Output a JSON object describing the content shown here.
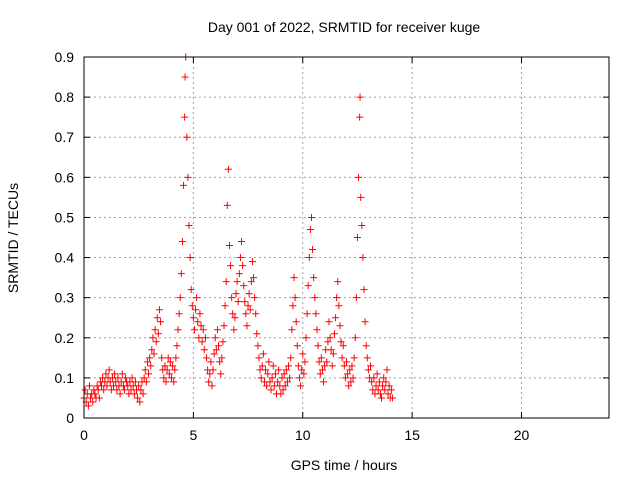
{
  "chart_data": {
    "type": "scatter",
    "title": "Day 001 of 2022, SRMTID for receiver kuge",
    "xlabel": "GPS time / hours",
    "ylabel": "SRMTID / TECUs",
    "xlim": [
      0,
      24
    ],
    "ylim": [
      0,
      0.9
    ],
    "xticks": [
      0,
      5,
      10,
      15,
      20
    ],
    "yticks": [
      0,
      0.1,
      0.2,
      0.3,
      0.4,
      0.5,
      0.6,
      0.7,
      0.8,
      0.9
    ],
    "grid": true,
    "marker": "+",
    "color": "#ff0000",
    "series": [
      {
        "name": "kuge",
        "points": [
          [
            0.0,
            0.05
          ],
          [
            0.05,
            0.07
          ],
          [
            0.1,
            0.04
          ],
          [
            0.15,
            0.06
          ],
          [
            0.2,
            0.03
          ],
          [
            0.25,
            0.08
          ],
          [
            0.3,
            0.05
          ],
          [
            0.35,
            0.06
          ],
          [
            0.4,
            0.04
          ],
          [
            0.45,
            0.07
          ],
          [
            0.5,
            0.06
          ],
          [
            0.55,
            0.05
          ],
          [
            0.6,
            0.08
          ],
          [
            0.65,
            0.07
          ],
          [
            0.7,
            0.05
          ],
          [
            0.75,
            0.09
          ],
          [
            0.8,
            0.08
          ],
          [
            0.85,
            0.1
          ],
          [
            0.9,
            0.07
          ],
          [
            0.95,
            0.09
          ],
          [
            1.0,
            0.11
          ],
          [
            1.05,
            0.08
          ],
          [
            1.1,
            0.1
          ],
          [
            1.15,
            0.12
          ],
          [
            1.2,
            0.09
          ],
          [
            1.25,
            0.07
          ],
          [
            1.3,
            0.1
          ],
          [
            1.35,
            0.08
          ],
          [
            1.4,
            0.11
          ],
          [
            1.45,
            0.09
          ],
          [
            1.5,
            0.07
          ],
          [
            1.55,
            0.1
          ],
          [
            1.6,
            0.08
          ],
          [
            1.65,
            0.06
          ],
          [
            1.7,
            0.09
          ],
          [
            1.75,
            0.11
          ],
          [
            1.8,
            0.08
          ],
          [
            1.85,
            0.07
          ],
          [
            1.9,
            0.1
          ],
          [
            1.95,
            0.09
          ],
          [
            2.0,
            0.08
          ],
          [
            2.05,
            0.06
          ],
          [
            2.1,
            0.09
          ],
          [
            2.15,
            0.07
          ],
          [
            2.2,
            0.1
          ],
          [
            2.25,
            0.08
          ],
          [
            2.3,
            0.06
          ],
          [
            2.35,
            0.09
          ],
          [
            2.4,
            0.07
          ],
          [
            2.45,
            0.05
          ],
          [
            2.5,
            0.08
          ],
          [
            2.55,
            0.04
          ],
          [
            2.6,
            0.07
          ],
          [
            2.65,
            0.09
          ],
          [
            2.7,
            0.06
          ],
          [
            2.75,
            0.1
          ],
          [
            2.8,
            0.12
          ],
          [
            2.85,
            0.09
          ],
          [
            2.9,
            0.14
          ],
          [
            2.95,
            0.11
          ],
          [
            3.0,
            0.15
          ],
          [
            3.05,
            0.13
          ],
          [
            3.1,
            0.17
          ],
          [
            3.15,
            0.2
          ],
          [
            3.2,
            0.16
          ],
          [
            3.25,
            0.22
          ],
          [
            3.3,
            0.19
          ],
          [
            3.35,
            0.25
          ],
          [
            3.4,
            0.21
          ],
          [
            3.45,
            0.27
          ],
          [
            3.5,
            0.24
          ],
          [
            3.55,
            0.15
          ],
          [
            3.6,
            0.12
          ],
          [
            3.65,
            0.1
          ],
          [
            3.7,
            0.13
          ],
          [
            3.75,
            0.09
          ],
          [
            3.8,
            0.12
          ],
          [
            3.85,
            0.15
          ],
          [
            3.9,
            0.11
          ],
          [
            3.95,
            0.14
          ],
          [
            4.0,
            0.1
          ],
          [
            4.05,
            0.13
          ],
          [
            4.1,
            0.09
          ],
          [
            4.15,
            0.12
          ],
          [
            4.2,
            0.15
          ],
          [
            4.25,
            0.18
          ],
          [
            4.3,
            0.22
          ],
          [
            4.35,
            0.26
          ],
          [
            4.4,
            0.3
          ],
          [
            4.45,
            0.36
          ],
          [
            4.5,
            0.44
          ],
          [
            4.55,
            0.58
          ],
          [
            4.6,
            0.75
          ],
          [
            4.62,
            0.85
          ],
          [
            4.65,
            0.9
          ],
          [
            4.7,
            0.7
          ],
          [
            4.75,
            0.6
          ],
          [
            4.8,
            0.48
          ],
          [
            4.85,
            0.4
          ],
          [
            4.9,
            0.32
          ],
          [
            4.95,
            0.28
          ],
          [
            5.0,
            0.25
          ],
          [
            5.05,
            0.22
          ],
          [
            5.1,
            0.27
          ],
          [
            5.15,
            0.3
          ],
          [
            5.2,
            0.24
          ],
          [
            5.25,
            0.2
          ],
          [
            5.3,
            0.26
          ],
          [
            5.35,
            0.23
          ],
          [
            5.4,
            0.19
          ],
          [
            5.45,
            0.22
          ],
          [
            5.5,
            0.17
          ],
          [
            5.55,
            0.2
          ],
          [
            5.6,
            0.15
          ],
          [
            5.65,
            0.12
          ],
          [
            5.7,
            0.09
          ],
          [
            5.75,
            0.11
          ],
          [
            5.8,
            0.14
          ],
          [
            5.85,
            0.08
          ],
          [
            5.9,
            0.12
          ],
          [
            5.95,
            0.16
          ],
          [
            6.0,
            0.2
          ],
          [
            6.05,
            0.17
          ],
          [
            6.1,
            0.22
          ],
          [
            6.15,
            0.18
          ],
          [
            6.2,
            0.14
          ],
          [
            6.25,
            0.11
          ],
          [
            6.3,
            0.15
          ],
          [
            6.35,
            0.19
          ],
          [
            6.4,
            0.23
          ],
          [
            6.45,
            0.28
          ],
          [
            6.5,
            0.34
          ],
          [
            6.55,
            0.53
          ],
          [
            6.6,
            0.62
          ],
          [
            6.65,
            0.43
          ],
          [
            6.7,
            0.38
          ],
          [
            6.75,
            0.3
          ],
          [
            6.8,
            0.26
          ],
          [
            6.85,
            0.22
          ],
          [
            6.9,
            0.25
          ],
          [
            6.95,
            0.31
          ],
          [
            7.0,
            0.34
          ],
          [
            7.05,
            0.29
          ],
          [
            7.1,
            0.36
          ],
          [
            7.15,
            0.4
          ],
          [
            7.2,
            0.44
          ],
          [
            7.25,
            0.38
          ],
          [
            7.3,
            0.33
          ],
          [
            7.35,
            0.29
          ],
          [
            7.4,
            0.26
          ],
          [
            7.45,
            0.23
          ],
          [
            7.5,
            0.28
          ],
          [
            7.55,
            0.31
          ],
          [
            7.6,
            0.27
          ],
          [
            7.65,
            0.34
          ],
          [
            7.7,
            0.39
          ],
          [
            7.75,
            0.35
          ],
          [
            7.8,
            0.3
          ],
          [
            7.85,
            0.26
          ],
          [
            7.9,
            0.21
          ],
          [
            7.95,
            0.18
          ],
          [
            8.0,
            0.15
          ],
          [
            8.05,
            0.12
          ],
          [
            8.1,
            0.1
          ],
          [
            8.15,
            0.13
          ],
          [
            8.2,
            0.16
          ],
          [
            8.25,
            0.09
          ],
          [
            8.3,
            0.12
          ],
          [
            8.35,
            0.08
          ],
          [
            8.4,
            0.11
          ],
          [
            8.45,
            0.14
          ],
          [
            8.5,
            0.09
          ],
          [
            8.55,
            0.07
          ],
          [
            8.6,
            0.1
          ],
          [
            8.65,
            0.13
          ],
          [
            8.7,
            0.08
          ],
          [
            8.75,
            0.11
          ],
          [
            8.8,
            0.06
          ],
          [
            8.85,
            0.09
          ],
          [
            8.9,
            0.12
          ],
          [
            8.95,
            0.08
          ],
          [
            9.0,
            0.06
          ],
          [
            9.05,
            0.1
          ],
          [
            9.1,
            0.07
          ],
          [
            9.15,
            0.11
          ],
          [
            9.2,
            0.08
          ],
          [
            9.25,
            0.12
          ],
          [
            9.3,
            0.09
          ],
          [
            9.35,
            0.13
          ],
          [
            9.4,
            0.1
          ],
          [
            9.45,
            0.15
          ],
          [
            9.5,
            0.22
          ],
          [
            9.55,
            0.28
          ],
          [
            9.6,
            0.35
          ],
          [
            9.65,
            0.3
          ],
          [
            9.7,
            0.24
          ],
          [
            9.75,
            0.18
          ],
          [
            9.8,
            0.13
          ],
          [
            9.85,
            0.1
          ],
          [
            9.9,
            0.08
          ],
          [
            9.95,
            0.12
          ],
          [
            10.0,
            0.16
          ],
          [
            10.05,
            0.11
          ],
          [
            10.1,
            0.14
          ],
          [
            10.15,
            0.2
          ],
          [
            10.2,
            0.26
          ],
          [
            10.25,
            0.33
          ],
          [
            10.3,
            0.4
          ],
          [
            10.35,
            0.47
          ],
          [
            10.4,
            0.5
          ],
          [
            10.45,
            0.42
          ],
          [
            10.5,
            0.35
          ],
          [
            10.55,
            0.3
          ],
          [
            10.6,
            0.26
          ],
          [
            10.65,
            0.22
          ],
          [
            10.7,
            0.18
          ],
          [
            10.75,
            0.14
          ],
          [
            10.8,
            0.11
          ],
          [
            10.85,
            0.15
          ],
          [
            10.9,
            0.12
          ],
          [
            10.95,
            0.09
          ],
          [
            11.0,
            0.13
          ],
          [
            11.05,
            0.17
          ],
          [
            11.1,
            0.14
          ],
          [
            11.15,
            0.19
          ],
          [
            11.2,
            0.24
          ],
          [
            11.25,
            0.2
          ],
          [
            11.3,
            0.17
          ],
          [
            11.35,
            0.13
          ],
          [
            11.4,
            0.16
          ],
          [
            11.45,
            0.21
          ],
          [
            11.5,
            0.25
          ],
          [
            11.55,
            0.3
          ],
          [
            11.6,
            0.34
          ],
          [
            11.65,
            0.28
          ],
          [
            11.7,
            0.23
          ],
          [
            11.75,
            0.19
          ],
          [
            11.8,
            0.15
          ],
          [
            11.85,
            0.18
          ],
          [
            11.9,
            0.13
          ],
          [
            11.95,
            0.1
          ],
          [
            12.0,
            0.14
          ],
          [
            12.05,
            0.11
          ],
          [
            12.1,
            0.08
          ],
          [
            12.15,
            0.12
          ],
          [
            12.2,
            0.09
          ],
          [
            12.25,
            0.13
          ],
          [
            12.3,
            0.1
          ],
          [
            12.35,
            0.15
          ],
          [
            12.4,
            0.2
          ],
          [
            12.45,
            0.3
          ],
          [
            12.5,
            0.45
          ],
          [
            12.55,
            0.6
          ],
          [
            12.6,
            0.75
          ],
          [
            12.62,
            0.8
          ],
          [
            12.65,
            0.55
          ],
          [
            12.7,
            0.48
          ],
          [
            12.75,
            0.4
          ],
          [
            12.8,
            0.32
          ],
          [
            12.85,
            0.24
          ],
          [
            12.9,
            0.18
          ],
          [
            12.95,
            0.15
          ],
          [
            13.0,
            0.12
          ],
          [
            13.05,
            0.1
          ],
          [
            13.1,
            0.13
          ],
          [
            13.15,
            0.09
          ],
          [
            13.2,
            0.07
          ],
          [
            13.25,
            0.1
          ],
          [
            13.3,
            0.06
          ],
          [
            13.35,
            0.08
          ],
          [
            13.4,
            0.11
          ],
          [
            13.45,
            0.07
          ],
          [
            13.5,
            0.09
          ],
          [
            13.55,
            0.06
          ],
          [
            13.6,
            0.05
          ],
          [
            13.65,
            0.08
          ],
          [
            13.7,
            0.1
          ],
          [
            13.75,
            0.07
          ],
          [
            13.8,
            0.09
          ],
          [
            13.85,
            0.12
          ],
          [
            13.9,
            0.06
          ],
          [
            13.95,
            0.08
          ],
          [
            14.0,
            0.05
          ],
          [
            14.05,
            0.07
          ],
          [
            14.1,
            0.05
          ]
        ]
      }
    ]
  }
}
